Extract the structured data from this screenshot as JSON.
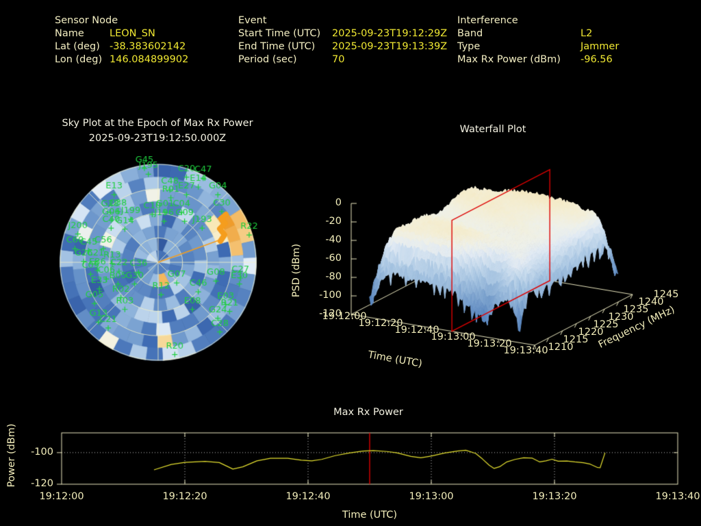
{
  "header": {
    "sensor": {
      "title": "Sensor Node",
      "fields": [
        {
          "label": "Name",
          "value": "LEON_SN"
        },
        {
          "label": "Lat (deg)",
          "value": "-38.383602142"
        },
        {
          "label": "Lon (deg)",
          "value": "146.084899902"
        }
      ]
    },
    "event": {
      "title": "Event",
      "fields": [
        {
          "label": "Start Time (UTC)",
          "value": "2025-09-23T19:12:29Z"
        },
        {
          "label": "End Time (UTC)",
          "value": "2025-09-23T19:13:39Z"
        },
        {
          "label": "Period (sec)",
          "value": "70"
        }
      ]
    },
    "interference": {
      "title": "Interference",
      "fields": [
        {
          "label": "Band",
          "value": "L2"
        },
        {
          "label": "Type",
          "value": "Jammer"
        },
        {
          "label": "Max Rx Power (dBm)",
          "value": "-96.56"
        }
      ]
    }
  },
  "colors": {
    "background": "#000000",
    "label_text": "#f3eec2",
    "value_text": "#f0e832",
    "title_text": "#f4f2e2",
    "tick_text": "#f3eebb",
    "axis": "#f3eec2",
    "satellite": "#1fcf3f",
    "series": "#e6e130",
    "epoch_line": "#dd0000",
    "grid_dotted": "#c9c9c9",
    "jammer_trace": "#f59d1d"
  },
  "chart_data": [
    {
      "id": "sky_plot",
      "type": "heatmap",
      "projection": "polar",
      "title": "Sky Plot at the Epoch of Max Rx Power",
      "subtitle": "2025-09-23T19:12:50.000Z",
      "rings_elevation_frac": [
        0.25,
        0.5,
        0.75
      ],
      "spokes_deg": 45,
      "palette": [
        "#2c4f96",
        "#3f6cb4",
        "#6792c9",
        "#97badf",
        "#c3d9ee",
        "#e4eef8",
        "#f6f3e0",
        "#f8e7b4",
        "#f4c170",
        "#ee9723"
      ],
      "seed": 7,
      "jammer_bearing": {
        "azimuth_deg": 65,
        "elevation_deg": 20
      },
      "satellites": [
        {
          "id": "G45",
          "u": -0.14,
          "v": -1.05
        },
        {
          "id": "J195",
          "u": -0.1,
          "v": -0.99
        },
        {
          "id": "C20",
          "u": 0.29,
          "v": -0.96
        },
        {
          "id": "C47",
          "u": 0.46,
          "v": -0.95
        },
        {
          "id": "E14",
          "u": 0.41,
          "v": -0.86
        },
        {
          "id": "C48",
          "u": 0.12,
          "v": -0.83
        },
        {
          "id": "E27",
          "u": 0.29,
          "v": -0.78
        },
        {
          "id": "R01",
          "u": 0.13,
          "v": -0.75
        },
        {
          "id": "G04",
          "u": 0.61,
          "v": -0.78
        },
        {
          "id": "E13",
          "u": -0.45,
          "v": -0.78
        },
        {
          "id": "C30",
          "u": 0.65,
          "v": -0.61
        },
        {
          "id": "G28",
          "u": -0.49,
          "v": -0.6
        },
        {
          "id": "C38",
          "u": -0.41,
          "v": -0.61
        },
        {
          "id": "G06",
          "u": -0.48,
          "v": -0.52
        },
        {
          "id": "J199",
          "u": -0.28,
          "v": -0.53
        },
        {
          "id": "C10",
          "u": -0.06,
          "v": -0.58
        },
        {
          "id": "G01",
          "u": 0.07,
          "v": -0.6
        },
        {
          "id": "C04",
          "u": 0.24,
          "v": -0.6
        },
        {
          "id": "J196",
          "u": 0.06,
          "v": -0.51
        },
        {
          "id": "G09",
          "u": 0.27,
          "v": -0.51
        },
        {
          "id": "J193",
          "u": 0.45,
          "v": -0.44
        },
        {
          "id": "R22",
          "u": 0.93,
          "v": -0.37
        },
        {
          "id": "C40",
          "u": -0.48,
          "v": -0.44
        },
        {
          "id": "G14",
          "u": -0.34,
          "v": -0.43
        },
        {
          "id": "J200",
          "u": -0.82,
          "v": -0.38
        },
        {
          "id": "C60",
          "u": -0.85,
          "v": -0.23
        },
        {
          "id": "C56",
          "u": -0.56,
          "v": -0.23
        },
        {
          "id": "C45",
          "u": -0.71,
          "v": -0.21
        },
        {
          "id": "G26",
          "u": -0.76,
          "v": -0.1
        },
        {
          "id": "C21",
          "u": -0.64,
          "v": -0.1
        },
        {
          "id": "R13",
          "u": -0.47,
          "v": -0.08
        },
        {
          "id": "E36",
          "u": -0.62,
          "v": -0.01
        },
        {
          "id": "C22",
          "u": -0.4,
          "v": 0.0
        },
        {
          "id": "C36",
          "u": -0.2,
          "v": 0.01
        },
        {
          "id": "C09",
          "u": -0.69,
          "v": 0.03
        },
        {
          "id": "C06",
          "u": -0.53,
          "v": 0.08
        },
        {
          "id": "B05",
          "u": -0.41,
          "v": 0.13
        },
        {
          "id": "G30",
          "u": -0.24,
          "v": 0.13
        },
        {
          "id": "E33",
          "u": -0.6,
          "v": 0.18
        },
        {
          "id": "R02",
          "u": -0.38,
          "v": 0.27
        },
        {
          "id": "G05",
          "u": -0.65,
          "v": 0.33
        },
        {
          "id": "R03",
          "u": -0.34,
          "v": 0.39
        },
        {
          "id": "G13",
          "u": -0.61,
          "v": 0.52
        },
        {
          "id": "C21",
          "u": -0.51,
          "v": 0.58
        },
        {
          "id": "G07",
          "u": 0.19,
          "v": 0.12
        },
        {
          "id": "R12",
          "u": 0.03,
          "v": 0.24
        },
        {
          "id": "C46",
          "u": 0.41,
          "v": 0.21
        },
        {
          "id": "G08",
          "u": 0.59,
          "v": 0.1
        },
        {
          "id": "C27",
          "u": 0.84,
          "v": 0.07
        },
        {
          "id": "E30",
          "u": 0.83,
          "v": 0.13
        },
        {
          "id": "E08",
          "u": 0.35,
          "v": 0.39
        },
        {
          "id": "E03",
          "u": 0.69,
          "v": 0.34
        },
        {
          "id": "R21",
          "u": 0.73,
          "v": 0.41
        },
        {
          "id": "G24",
          "u": 0.61,
          "v": 0.48
        },
        {
          "id": "C28",
          "u": 0.63,
          "v": 0.62
        },
        {
          "id": "R20",
          "u": 0.17,
          "v": 0.85
        }
      ]
    },
    {
      "id": "waterfall",
      "type": "surface_3d",
      "title": "Waterfall Plot",
      "xlabel": "Time (UTC)",
      "ylabel": "Frequency (MHz)",
      "zlabel": "PSD (dBm)",
      "time_ticks": [
        "19:12:00",
        "19:12:20",
        "19:12:40",
        "19:13:00",
        "19:13:20",
        "19:13:40"
      ],
      "freq_ticks": [
        "1210",
        "1215",
        "1220",
        "1225",
        "1230",
        "1235",
        "1240",
        "1245"
      ],
      "psd_ticks": [
        "0",
        "-20",
        "-40",
        "-60",
        "-80",
        "-100",
        "-120"
      ],
      "zlim": [
        -120,
        0
      ],
      "freq_range_mhz": [
        1210,
        1245
      ],
      "time_range": [
        "19:12:00",
        "19:13:40"
      ],
      "surface": {
        "plateau_psd_dbm": -29,
        "edge_psd_dbm": -90,
        "notch": {
          "freq_mhz": 1214,
          "time": "19:13:12",
          "psd_dbm": -112
        },
        "time_span_frac": [
          0.1,
          0.92
        ],
        "noise_db": 6,
        "seed": 11
      },
      "epoch_marker": {
        "time": "19:12:50",
        "time_frac": 0.549,
        "color": "#dd0000"
      }
    },
    {
      "id": "max_rx_power",
      "type": "line",
      "title": "Max Rx Power",
      "xlabel": "Time (UTC)",
      "ylabel": "Power (dBm)",
      "x_ticks": [
        "19:12:00",
        "19:12:20",
        "19:12:40",
        "19:13:00",
        "19:13:20",
        "19:13:40"
      ],
      "y_ticks": [
        "-100",
        "-120"
      ],
      "ylim": [
        -120,
        -87.5
      ],
      "x_range_sec": [
        0,
        100
      ],
      "gridline_y": -100,
      "epoch_line_sec": 50,
      "series": {
        "name": "max_rx_power_dbm",
        "color": "#e6e130",
        "points": [
          [
            15,
            -110.9
          ],
          [
            17.8,
            -107.5
          ],
          [
            20,
            -106.2
          ],
          [
            23.3,
            -105.5
          ],
          [
            25.6,
            -106.3
          ],
          [
            27.8,
            -110.4
          ],
          [
            29.4,
            -109
          ],
          [
            31.7,
            -105.2
          ],
          [
            33.9,
            -103.6
          ],
          [
            36.7,
            -103.6
          ],
          [
            38.9,
            -104.8
          ],
          [
            40.6,
            -105.2
          ],
          [
            42.2,
            -104.3
          ],
          [
            44.4,
            -101.9
          ],
          [
            46.7,
            -100.2
          ],
          [
            48.9,
            -99
          ],
          [
            50.6,
            -98.7
          ],
          [
            52.8,
            -99.3
          ],
          [
            54.4,
            -100.1
          ],
          [
            56.7,
            -102.4
          ],
          [
            58.3,
            -103.3
          ],
          [
            60,
            -102.2
          ],
          [
            62.2,
            -100.2
          ],
          [
            64.4,
            -98.9
          ],
          [
            65.6,
            -98.5
          ],
          [
            67.2,
            -100.5
          ],
          [
            68.3,
            -104
          ],
          [
            69.4,
            -108
          ],
          [
            70.2,
            -110
          ],
          [
            71.1,
            -108.9
          ],
          [
            72.2,
            -106
          ],
          [
            73.6,
            -104.3
          ],
          [
            75,
            -103.3
          ],
          [
            76.4,
            -103.5
          ],
          [
            77.6,
            -105.9
          ],
          [
            78.6,
            -105.2
          ],
          [
            79.6,
            -104.2
          ],
          [
            80.6,
            -105.4
          ],
          [
            82,
            -105.3
          ],
          [
            83.3,
            -105.9
          ],
          [
            84.7,
            -106.4
          ],
          [
            85.8,
            -107.3
          ],
          [
            86.9,
            -109.3
          ],
          [
            87.4,
            -109.6
          ],
          [
            88.2,
            -100.1
          ]
        ]
      }
    }
  ]
}
